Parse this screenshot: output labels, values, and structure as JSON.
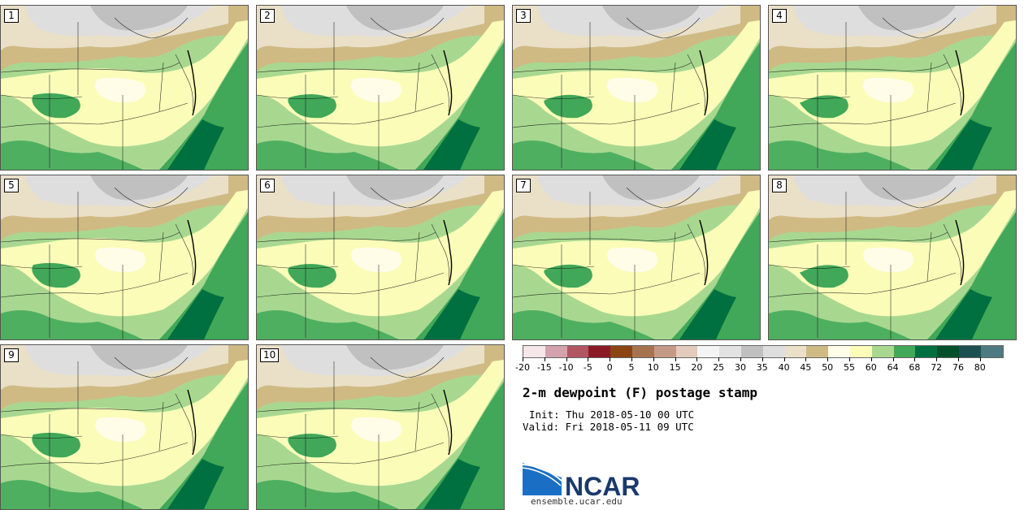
{
  "panels": [
    {
      "label": "1"
    },
    {
      "label": "2"
    },
    {
      "label": "3"
    },
    {
      "label": "4"
    },
    {
      "label": "5"
    },
    {
      "label": "6"
    },
    {
      "label": "7"
    },
    {
      "label": "8"
    },
    {
      "label": "9"
    },
    {
      "label": "10"
    }
  ],
  "colorbar": {
    "labels": [
      "-20",
      "-15",
      "-10",
      "-5",
      "0",
      "5",
      "10",
      "15",
      "20",
      "25",
      "30",
      "35",
      "40",
      "45",
      "50",
      "55",
      "60",
      "64",
      "68",
      "72",
      "76",
      "80"
    ],
    "colors": [
      "#f5e6ea",
      "#d4a2ad",
      "#b05763",
      "#8b1a24",
      "#8b4513",
      "#a5744f",
      "#c49a86",
      "#e2cbbd",
      "#f4f4f4",
      "#e2e2e2",
      "#c0c0c0",
      "#dedede",
      "#eae0c8",
      "#d0ba84",
      "#fffce8",
      "#fafcb8",
      "#a8d890",
      "#40a858",
      "#007040",
      "#00502c",
      "#1c5050",
      "#4c7a80"
    ]
  },
  "title": "2-m dewpoint (F) postage stamp",
  "init_text": "Init: Thu 2018-05-10 00 UTC",
  "valid_text": "Valid: Fri 2018-05-11 09 UTC",
  "logo_text": "NCAR",
  "site": "ensemble.ucar.edu"
}
